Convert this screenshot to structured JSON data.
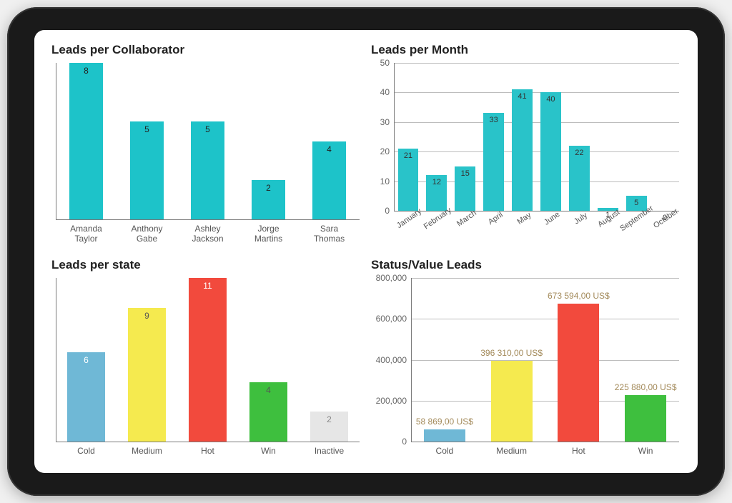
{
  "tablet": {
    "bezel_color": "#1a1a1a",
    "screen_bg": "#ffffff"
  },
  "chart1": {
    "title": "Leads per Collaborator",
    "type": "bar",
    "categories": [
      "Amanda Taylor",
      "Anthony Gabe",
      "Ashley Jackson",
      "Jorge Martins",
      "Sara Thomas"
    ],
    "values": [
      8,
      5,
      5,
      2,
      4
    ],
    "bar_color": "#1dc3c9",
    "value_label_color": "#222222",
    "value_label_fontsize": 12,
    "title_fontsize": 17,
    "ylim": [
      0,
      8
    ],
    "show_yticks": false,
    "grid_color": "#bdbdbd",
    "axis_color": "#7a7a7a",
    "bar_width_ratio": 0.55,
    "background_color": "#ffffff",
    "label_fontsize": 12
  },
  "chart2": {
    "title": "Leads per Month",
    "type": "bar",
    "categories": [
      "January",
      "February",
      "March",
      "April",
      "May",
      "June",
      "July",
      "August",
      "September",
      "October"
    ],
    "values": [
      21,
      12,
      15,
      33,
      41,
      40,
      22,
      1,
      5,
      0
    ],
    "bar_color": "#29c3c9",
    "value_label_color": "#333333",
    "value_label_fontsize": 11,
    "title_fontsize": 17,
    "ylim": [
      0,
      50
    ],
    "ytick_step": 10,
    "yticks": [
      0,
      10,
      20,
      30,
      40,
      50
    ],
    "grid_color": "#bdbdbd",
    "axis_color": "#7a7a7a",
    "bar_width_ratio": 0.72,
    "background_color": "#ffffff",
    "label_fontsize": 11,
    "x_label_rotation_deg": -35
  },
  "chart3": {
    "title": "Leads per state",
    "type": "bar",
    "categories": [
      "Cold",
      "Medium",
      "Hot",
      "Win",
      "Inactive"
    ],
    "values": [
      6,
      9,
      11,
      4,
      2
    ],
    "bar_colors": [
      "#6fb8d6",
      "#f5ea4f",
      "#f24a3d",
      "#3ebf3e",
      "#e6e6e6"
    ],
    "value_label_colors": [
      "#ffffff",
      "#555555",
      "#ffffff",
      "#555555",
      "#888888"
    ],
    "value_label_fontsize": 12,
    "title_fontsize": 17,
    "ylim": [
      0,
      11
    ],
    "show_yticks": false,
    "grid_color": "#bdbdbd",
    "axis_color": "#7a7a7a",
    "bar_width_ratio": 0.62,
    "background_color": "#ffffff",
    "label_fontsize": 12
  },
  "chart4": {
    "title": "Status/Value Leads",
    "type": "bar",
    "categories": [
      "Cold",
      "Medium",
      "Hot",
      "Win"
    ],
    "values": [
      58869,
      396310,
      673594,
      225880
    ],
    "value_labels": [
      "58 869,00 US$",
      "396 310,00 US$",
      "673 594,00 US$",
      "225 880,00 US$"
    ],
    "bar_colors": [
      "#6fb8d6",
      "#f5ea4f",
      "#f24a3d",
      "#3ebf3e"
    ],
    "value_label_color": "#a38a5a",
    "value_label_fontsize": 12,
    "title_fontsize": 17,
    "ylim": [
      0,
      800000
    ],
    "ytick_step": 200000,
    "yticks": [
      0,
      200000,
      400000,
      600000,
      800000
    ],
    "ytick_labels": [
      "0",
      "200,000",
      "400,000",
      "600,000",
      "800,000"
    ],
    "grid_color": "#bdbdbd",
    "axis_color": "#7a7a7a",
    "bar_width_ratio": 0.62,
    "background_color": "#ffffff",
    "label_fontsize": 12
  }
}
